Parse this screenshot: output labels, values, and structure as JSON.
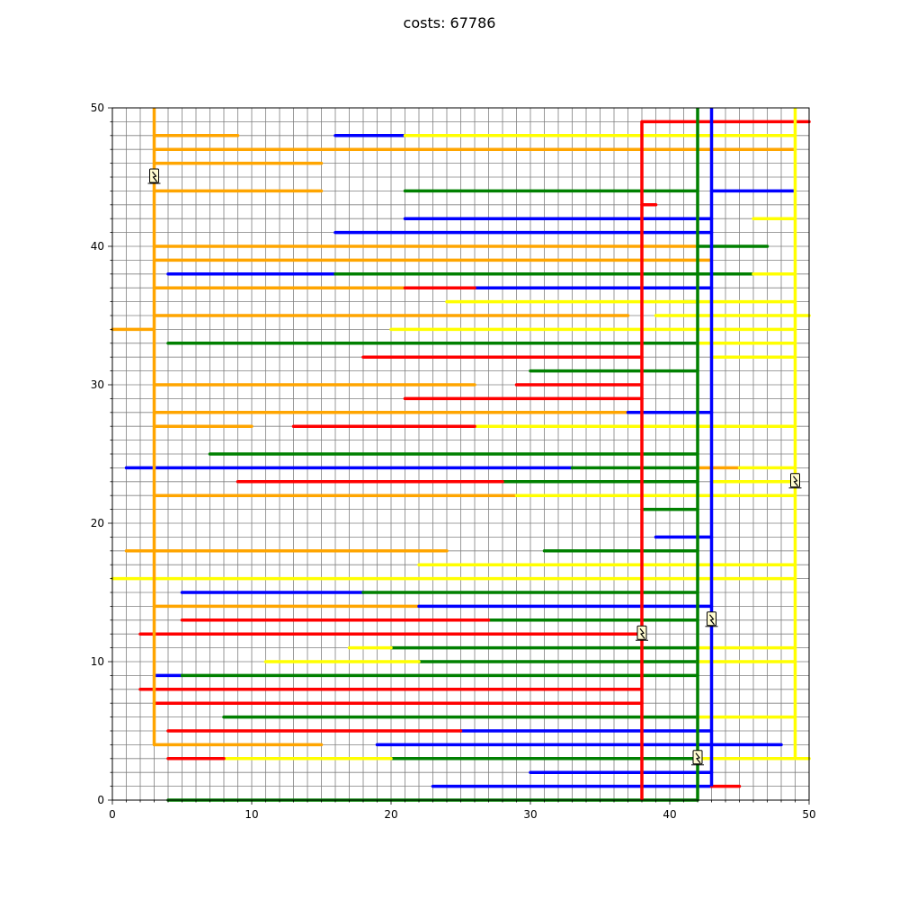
{
  "title": "costs: 67786",
  "chart_data": {
    "type": "line",
    "title": "costs: 67786",
    "xlabel": "",
    "ylabel": "",
    "xlim": [
      0,
      50
    ],
    "ylim": [
      0,
      50
    ],
    "grid": "minor grid every 1 unit",
    "x_ticks": [
      0,
      10,
      20,
      30,
      40,
      50
    ],
    "y_ticks": [
      0,
      10,
      20,
      30,
      40,
      50
    ],
    "colors": {
      "orange": "#ffa500",
      "blue": "#0000ff",
      "green": "#008000",
      "yellow": "#ffff00",
      "red": "#ff0000"
    },
    "trunks": [
      {
        "color": "orange",
        "x": 3,
        "y": [
          4,
          50
        ]
      },
      {
        "color": "red",
        "x": 38,
        "y": [
          0,
          49
        ]
      },
      {
        "color": "green",
        "x": 42,
        "y": [
          0,
          50
        ]
      },
      {
        "color": "blue",
        "x": 43,
        "y": [
          1,
          50
        ]
      },
      {
        "color": "yellow",
        "x": 49,
        "y": [
          3,
          50
        ]
      }
    ],
    "connections": [
      {
        "color": "orange",
        "y": 48,
        "x": [
          3,
          9
        ]
      },
      {
        "color": "orange",
        "y": 47,
        "x": [
          3,
          49
        ]
      },
      {
        "color": "orange",
        "y": 46,
        "x": [
          3,
          15
        ]
      },
      {
        "color": "orange",
        "y": 44,
        "x": [
          3,
          15
        ]
      },
      {
        "color": "orange",
        "y": 40,
        "x": [
          3,
          42
        ]
      },
      {
        "color": "orange",
        "y": 39,
        "x": [
          3,
          43
        ]
      },
      {
        "color": "orange",
        "y": 37,
        "x": [
          3,
          21
        ]
      },
      {
        "color": "orange",
        "y": 35,
        "x": [
          3,
          37
        ]
      },
      {
        "color": "orange",
        "y": 34,
        "x": [
          0,
          3
        ]
      },
      {
        "color": "orange",
        "y": 30,
        "x": [
          3,
          26
        ]
      },
      {
        "color": "orange",
        "y": 28,
        "x": [
          3,
          37
        ]
      },
      {
        "color": "orange",
        "y": 27,
        "x": [
          3,
          10
        ]
      },
      {
        "color": "orange",
        "y": 24,
        "x": [
          42,
          45
        ]
      },
      {
        "color": "orange",
        "y": 22,
        "x": [
          3,
          29
        ]
      },
      {
        "color": "orange",
        "y": 18,
        "x": [
          1,
          24
        ]
      },
      {
        "color": "orange",
        "y": 14,
        "x": [
          3,
          22
        ]
      },
      {
        "color": "orange",
        "y": 4,
        "x": [
          3,
          15
        ]
      },
      {
        "color": "blue",
        "y": 48,
        "x": [
          16,
          21
        ]
      },
      {
        "color": "blue",
        "y": 44,
        "x": [
          43,
          49
        ]
      },
      {
        "color": "blue",
        "y": 42,
        "x": [
          21,
          43
        ]
      },
      {
        "color": "blue",
        "y": 41,
        "x": [
          16,
          43
        ]
      },
      {
        "color": "blue",
        "y": 38,
        "x": [
          4,
          16
        ]
      },
      {
        "color": "blue",
        "y": 37,
        "x": [
          26,
          43
        ]
      },
      {
        "color": "blue",
        "y": 28,
        "x": [
          37,
          43
        ]
      },
      {
        "color": "blue",
        "y": 24,
        "x": [
          1,
          33
        ]
      },
      {
        "color": "blue",
        "y": 19,
        "x": [
          39,
          43
        ]
      },
      {
        "color": "blue",
        "y": 15,
        "x": [
          5,
          18
        ]
      },
      {
        "color": "blue",
        "y": 14,
        "x": [
          22,
          43
        ]
      },
      {
        "color": "blue",
        "y": 9,
        "x": [
          3,
          5
        ]
      },
      {
        "color": "blue",
        "y": 5,
        "x": [
          25,
          43
        ]
      },
      {
        "color": "blue",
        "y": 4,
        "x": [
          19,
          48
        ]
      },
      {
        "color": "blue",
        "y": 2,
        "x": [
          30,
          43
        ]
      },
      {
        "color": "blue",
        "y": 1,
        "x": [
          23,
          43
        ]
      },
      {
        "color": "green",
        "y": 44,
        "x": [
          21,
          42
        ]
      },
      {
        "color": "green",
        "y": 40,
        "x": [
          42,
          47
        ]
      },
      {
        "color": "green",
        "y": 38,
        "x": [
          16,
          46
        ]
      },
      {
        "color": "green",
        "y": 36,
        "x": [
          41,
          42
        ]
      },
      {
        "color": "green",
        "y": 33,
        "x": [
          4,
          42
        ]
      },
      {
        "color": "green",
        "y": 31,
        "x": [
          30,
          42
        ]
      },
      {
        "color": "green",
        "y": 25,
        "x": [
          7,
          42
        ]
      },
      {
        "color": "green",
        "y": 24,
        "x": [
          33,
          42
        ]
      },
      {
        "color": "green",
        "y": 23,
        "x": [
          28,
          42
        ]
      },
      {
        "color": "green",
        "y": 21,
        "x": [
          38,
          42
        ]
      },
      {
        "color": "green",
        "y": 18,
        "x": [
          31,
          42
        ]
      },
      {
        "color": "green",
        "y": 15,
        "x": [
          18,
          42
        ]
      },
      {
        "color": "green",
        "y": 13,
        "x": [
          27,
          42
        ]
      },
      {
        "color": "green",
        "y": 11,
        "x": [
          20,
          42
        ]
      },
      {
        "color": "green",
        "y": 10,
        "x": [
          22,
          42
        ]
      },
      {
        "color": "green",
        "y": 9,
        "x": [
          5,
          42
        ]
      },
      {
        "color": "green",
        "y": 6,
        "x": [
          8,
          42
        ]
      },
      {
        "color": "green",
        "y": 3,
        "x": [
          20,
          42
        ]
      },
      {
        "color": "green",
        "y": 0,
        "x": [
          4,
          42
        ]
      },
      {
        "color": "yellow",
        "y": 48,
        "x": [
          21,
          49
        ]
      },
      {
        "color": "yellow",
        "y": 42,
        "x": [
          46,
          49
        ]
      },
      {
        "color": "yellow",
        "y": 38,
        "x": [
          46,
          49
        ]
      },
      {
        "color": "yellow",
        "y": 36,
        "x": [
          24,
          49
        ]
      },
      {
        "color": "yellow",
        "y": 35,
        "x": [
          39,
          50
        ]
      },
      {
        "color": "yellow",
        "y": 34,
        "x": [
          20,
          49
        ]
      },
      {
        "color": "yellow",
        "y": 33,
        "x": [
          42,
          49
        ]
      },
      {
        "color": "yellow",
        "y": 32,
        "x": [
          43,
          49
        ]
      },
      {
        "color": "yellow",
        "y": 27,
        "x": [
          26,
          49
        ]
      },
      {
        "color": "yellow",
        "y": 24,
        "x": [
          45,
          49
        ]
      },
      {
        "color": "yellow",
        "y": 23,
        "x": [
          43,
          49
        ]
      },
      {
        "color": "yellow",
        "y": 22,
        "x": [
          29,
          49
        ]
      },
      {
        "color": "yellow",
        "y": 17,
        "x": [
          22,
          49
        ]
      },
      {
        "color": "yellow",
        "y": 16,
        "x": [
          0,
          49
        ]
      },
      {
        "color": "yellow",
        "y": 11,
        "x": [
          17,
          20
        ]
      },
      {
        "color": "yellow",
        "y": 11,
        "x": [
          42,
          49
        ]
      },
      {
        "color": "yellow",
        "y": 10,
        "x": [
          11,
          22
        ]
      },
      {
        "color": "yellow",
        "y": 10,
        "x": [
          42,
          49
        ]
      },
      {
        "color": "yellow",
        "y": 6,
        "x": [
          42,
          49
        ]
      },
      {
        "color": "yellow",
        "y": 3,
        "x": [
          8,
          20
        ]
      },
      {
        "color": "yellow",
        "y": 3,
        "x": [
          42,
          50
        ]
      },
      {
        "color": "red",
        "y": 49,
        "x": [
          38,
          50
        ]
      },
      {
        "color": "red",
        "y": 43,
        "x": [
          38,
          39
        ]
      },
      {
        "color": "red",
        "y": 37,
        "x": [
          21,
          26
        ]
      },
      {
        "color": "red",
        "y": 32,
        "x": [
          18,
          38
        ]
      },
      {
        "color": "red",
        "y": 30,
        "x": [
          29,
          38
        ]
      },
      {
        "color": "red",
        "y": 29,
        "x": [
          21,
          38
        ]
      },
      {
        "color": "red",
        "y": 27,
        "x": [
          13,
          26
        ]
      },
      {
        "color": "red",
        "y": 23,
        "x": [
          9,
          28
        ]
      },
      {
        "color": "red",
        "y": 13,
        "x": [
          5,
          27
        ]
      },
      {
        "color": "red",
        "y": 12,
        "x": [
          2,
          38
        ]
      },
      {
        "color": "red",
        "y": 8,
        "x": [
          2,
          38
        ]
      },
      {
        "color": "red",
        "y": 7,
        "x": [
          3,
          38
        ]
      },
      {
        "color": "red",
        "y": 5,
        "x": [
          4,
          25
        ]
      },
      {
        "color": "red",
        "y": 3,
        "x": [
          4,
          8
        ]
      },
      {
        "color": "red",
        "y": 1,
        "x": [
          43,
          45
        ]
      }
    ],
    "markers": [
      {
        "x": 3,
        "y": 45,
        "icon": "plug-icon"
      },
      {
        "x": 49,
        "y": 23,
        "icon": "plug-icon"
      },
      {
        "x": 43,
        "y": 13,
        "icon": "plug-icon"
      },
      {
        "x": 38,
        "y": 12,
        "icon": "plug-icon"
      },
      {
        "x": 42,
        "y": 3,
        "icon": "plug-icon"
      }
    ]
  }
}
